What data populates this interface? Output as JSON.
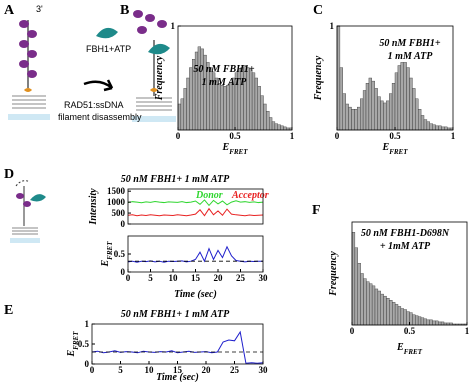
{
  "panels": [
    "A",
    "B",
    "C",
    "D",
    "E",
    "F"
  ],
  "diagram": {
    "three_prime": "3'",
    "reagent": "FBH1+ATP",
    "caption": [
      "RAD51:ssDNA",
      "filament disassembly"
    ]
  },
  "chart_data": [
    {
      "type": "histogram",
      "title": [
        "50 nM FBH1+",
        "1 mM ATP"
      ],
      "xlabel": [
        "E",
        "FRET"
      ],
      "ylabel": "Frequency",
      "color": "#a8a8a8",
      "xlim": [
        0,
        1
      ],
      "ylim": [
        0,
        1
      ],
      "xticks": [
        0,
        0.5,
        1
      ],
      "yticks": [
        1
      ],
      "bins": [
        0,
        0.025,
        0.05,
        0.075,
        0.1,
        0.125,
        0.15,
        0.175,
        0.2,
        0.225,
        0.25,
        0.275,
        0.3,
        0.325,
        0.35,
        0.375,
        0.4,
        0.425,
        0.45,
        0.475,
        0.5,
        0.525,
        0.55,
        0.575,
        0.6,
        0.625,
        0.65,
        0.675,
        0.7,
        0.725,
        0.75,
        0.775,
        0.8,
        0.825,
        0.85,
        0.875,
        0.9,
        0.925,
        0.95,
        0.975,
        1
      ],
      "values": [
        0.25,
        0.3,
        0.4,
        0.5,
        0.6,
        0.68,
        0.75,
        0.8,
        0.78,
        0.72,
        0.65,
        0.6,
        0.55,
        0.5,
        0.45,
        0.43,
        0.42,
        0.43,
        0.46,
        0.5,
        0.55,
        0.58,
        0.6,
        0.62,
        0.6,
        0.58,
        0.55,
        0.5,
        0.42,
        0.33,
        0.25,
        0.18,
        0.12,
        0.08,
        0.06,
        0.05,
        0.04,
        0.03,
        0.02,
        0.02
      ]
    },
    {
      "type": "histogram",
      "title": [
        "50 nM FBH1+",
        "1 mM ATP"
      ],
      "xlabel": [
        "E",
        "FRET"
      ],
      "ylabel": "Frequency",
      "color": "#a8a8a8",
      "xlim": [
        0,
        1
      ],
      "ylim": [
        0,
        1
      ],
      "xticks": [
        0,
        0.5,
        1
      ],
      "yticks": [
        1
      ],
      "bins": [
        0,
        0.025,
        0.05,
        0.075,
        0.1,
        0.125,
        0.15,
        0.175,
        0.2,
        0.225,
        0.25,
        0.275,
        0.3,
        0.325,
        0.35,
        0.375,
        0.4,
        0.425,
        0.45,
        0.475,
        0.5,
        0.525,
        0.55,
        0.575,
        0.6,
        0.625,
        0.65,
        0.675,
        0.7,
        0.725,
        0.75,
        0.775,
        0.8,
        0.825,
        0.85,
        0.875,
        0.9,
        0.925,
        0.95,
        0.975,
        1
      ],
      "values": [
        1.0,
        0.6,
        0.35,
        0.25,
        0.22,
        0.2,
        0.2,
        0.22,
        0.3,
        0.38,
        0.45,
        0.5,
        0.47,
        0.4,
        0.32,
        0.28,
        0.26,
        0.28,
        0.35,
        0.45,
        0.55,
        0.62,
        0.65,
        0.65,
        0.6,
        0.5,
        0.4,
        0.3,
        0.2,
        0.14,
        0.1,
        0.08,
        0.06,
        0.05,
        0.04,
        0.04,
        0.03,
        0.03,
        0.02,
        0.02
      ]
    },
    {
      "type": "line",
      "title": "50 nM FBH1+ 1 mM ATP",
      "ylabel": "Intensity",
      "xlim": [
        0,
        30
      ],
      "ylim": [
        0,
        1600
      ],
      "yticks": [
        0,
        500,
        1000,
        1500
      ],
      "x": [
        0,
        1,
        2,
        3,
        4,
        5,
        6,
        7,
        8,
        9,
        10,
        11,
        12,
        13,
        14,
        15,
        16,
        17,
        18,
        19,
        20,
        21,
        22,
        23,
        24,
        25,
        26,
        27,
        28,
        29,
        30
      ],
      "series": [
        {
          "name": "Donor",
          "color": "#2fd62f",
          "values": [
            980,
            1020,
            1000,
            970,
            1010,
            990,
            1030,
            1000,
            980,
            1010,
            1000,
            990,
            1020,
            980,
            1000,
            1050,
            900,
            1100,
            850,
            1080,
            920,
            1050,
            880,
            1000,
            1060,
            1000,
            1020,
            990,
            1010,
            980,
            1000
          ]
        },
        {
          "name": "Acceptor",
          "color": "#e82020",
          "values": [
            400,
            420,
            380,
            410,
            390,
            420,
            400,
            380,
            410,
            400,
            390,
            420,
            400,
            380,
            410,
            450,
            650,
            380,
            700,
            420,
            600,
            400,
            680,
            450,
            420,
            400,
            380,
            410,
            390,
            400,
            410
          ]
        }
      ]
    },
    {
      "type": "line",
      "xlabel": "Time (sec)",
      "ylabel": [
        "E",
        "FRET"
      ],
      "xlim": [
        0,
        30
      ],
      "ylim": [
        0,
        1
      ],
      "xticks": [
        0,
        5,
        10,
        15,
        20,
        25,
        30
      ],
      "yticks": [
        0,
        0.5
      ],
      "hline": 0.3,
      "x": [
        0,
        1,
        2,
        3,
        4,
        5,
        6,
        7,
        8,
        9,
        10,
        11,
        12,
        13,
        14,
        15,
        16,
        17,
        18,
        19,
        20,
        21,
        22,
        23,
        24,
        25,
        26,
        27,
        28,
        29,
        30
      ],
      "series": [
        {
          "color": "#1f1fcc",
          "values": [
            0.28,
            0.3,
            0.27,
            0.3,
            0.29,
            0.31,
            0.28,
            0.3,
            0.27,
            0.3,
            0.29,
            0.3,
            0.31,
            0.28,
            0.3,
            0.35,
            0.55,
            0.3,
            0.65,
            0.35,
            0.6,
            0.4,
            0.7,
            0.45,
            0.32,
            0.3,
            0.28,
            0.3,
            0.29,
            0.3,
            0.3
          ]
        }
      ]
    },
    {
      "type": "line",
      "title": "50 nM FBH1+ 1 mM ATP",
      "xlabel": "Time (sec)",
      "ylabel": [
        "E",
        "FRET"
      ],
      "xlim": [
        0,
        30
      ],
      "ylim": [
        0,
        1
      ],
      "xticks": [
        0,
        5,
        10,
        15,
        20,
        25,
        30
      ],
      "yticks": [
        0,
        0.5,
        1
      ],
      "hline": 0.3,
      "x": [
        0,
        1,
        2,
        3,
        4,
        5,
        6,
        7,
        8,
        9,
        10,
        11,
        12,
        13,
        14,
        15,
        16,
        17,
        18,
        19,
        20,
        21,
        22,
        23,
        24,
        25,
        26,
        27,
        28,
        29,
        30
      ],
      "series": [
        {
          "color": "#1f1fcc",
          "values": [
            0.3,
            0.32,
            0.28,
            0.3,
            0.33,
            0.29,
            0.31,
            0.3,
            0.28,
            0.32,
            0.3,
            0.29,
            0.31,
            0.3,
            0.33,
            0.28,
            0.3,
            0.32,
            0.29,
            0.3,
            0.31,
            0.28,
            0.3,
            0.55,
            0.6,
            0.58,
            0.8,
            0.02,
            0.03,
            0.02,
            0.03
          ]
        }
      ]
    },
    {
      "type": "histogram",
      "title": [
        "50 nM FBH1-D698N",
        "+ 1mM ATP"
      ],
      "xlabel": [
        "E",
        "FRET"
      ],
      "ylabel": "Frequency",
      "color": "#a8a8a8",
      "xlim": [
        0,
        1
      ],
      "ylim": [
        0,
        1
      ],
      "xticks": [
        0,
        0.5,
        1
      ],
      "bins": [
        0,
        0.025,
        0.05,
        0.075,
        0.1,
        0.125,
        0.15,
        0.175,
        0.2,
        0.225,
        0.25,
        0.275,
        0.3,
        0.325,
        0.35,
        0.375,
        0.4,
        0.425,
        0.45,
        0.475,
        0.5,
        0.525,
        0.55,
        0.575,
        0.6,
        0.625,
        0.65,
        0.675,
        0.7,
        0.725,
        0.75,
        0.775,
        0.8,
        0.825,
        0.85,
        0.875,
        0.9,
        0.925,
        0.95,
        0.975,
        1
      ],
      "values": [
        0.9,
        0.75,
        0.6,
        0.5,
        0.45,
        0.42,
        0.4,
        0.38,
        0.35,
        0.33,
        0.3,
        0.28,
        0.26,
        0.24,
        0.22,
        0.2,
        0.18,
        0.16,
        0.15,
        0.13,
        0.12,
        0.1,
        0.09,
        0.08,
        0.07,
        0.06,
        0.05,
        0.05,
        0.04,
        0.04,
        0.03,
        0.03,
        0.02,
        0.02,
        0.02,
        0.01,
        0.01,
        0.01,
        0.01,
        0.01
      ]
    }
  ]
}
